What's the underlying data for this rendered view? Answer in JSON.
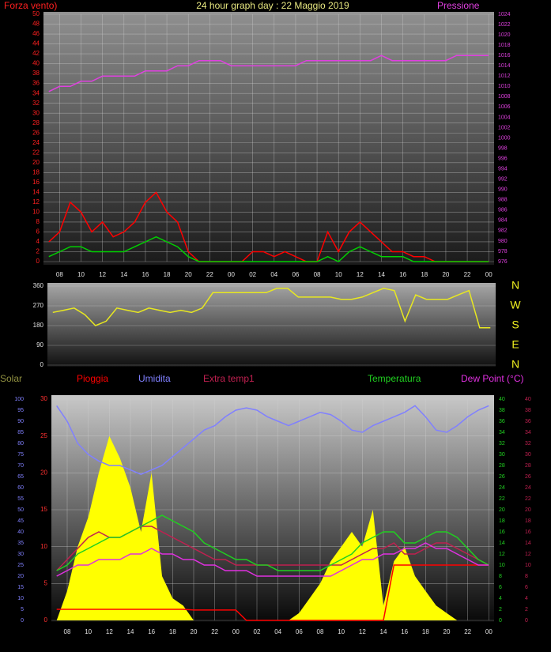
{
  "chart_data": [
    {
      "type": "line",
      "title": "24 hour graph day : 22 Maggio 2019",
      "ylabel": "Forza vento)",
      "y2label": "Pressione",
      "x": [
        7,
        8,
        9,
        10,
        11,
        12,
        13,
        14,
        15,
        16,
        17,
        18,
        19,
        20,
        21,
        22,
        23,
        24,
        25,
        26,
        27,
        28,
        29,
        30,
        31,
        32,
        33,
        34,
        35,
        36,
        37,
        38,
        39,
        40,
        41,
        42,
        43,
        44,
        45,
        46,
        47,
        48
      ],
      "xlim": [
        6.5,
        48.5
      ],
      "xticks": [
        {
          "value": 8,
          "label": "08"
        },
        10,
        12,
        14,
        16,
        18,
        20,
        22,
        {
          "value": 24,
          "label": "00"
        },
        {
          "value": 26,
          "label": "02"
        },
        {
          "value": 28,
          "label": "04"
        },
        {
          "value": 30,
          "label": "06"
        },
        {
          "value": 32,
          "label": "08"
        },
        {
          "value": 34,
          "label": "10"
        },
        {
          "value": 36,
          "label": "12"
        },
        {
          "value": 38,
          "label": "14"
        },
        {
          "value": 40,
          "label": "16"
        },
        {
          "value": 42,
          "label": "18"
        },
        {
          "value": 44,
          "label": "20"
        },
        {
          "value": 46,
          "label": "22"
        },
        {
          "value": 48,
          "label": "00"
        }
      ],
      "ylim": [
        0,
        50
      ],
      "yticks": [
        0,
        2,
        4,
        6,
        8,
        10,
        12,
        14,
        16,
        18,
        20,
        22,
        24,
        26,
        28,
        30,
        32,
        34,
        36,
        38,
        40,
        42,
        44,
        46,
        48,
        50
      ],
      "y2lim": [
        976,
        1024
      ],
      "y2ticks": [
        976,
        978,
        980,
        982,
        984,
        986,
        988,
        990,
        992,
        994,
        996,
        998,
        1000,
        1002,
        1004,
        1006,
        1008,
        1010,
        1012,
        1014,
        1016,
        1018,
        1020,
        1022,
        1024
      ],
      "axis_colors": {
        "y": "#ff2020",
        "y2": "#e040e0"
      },
      "grid": true,
      "series": [
        {
          "color": "#ff0000",
          "values": [
            4,
            6,
            12,
            10,
            6,
            8,
            5,
            6,
            8,
            12,
            14,
            10,
            8,
            2,
            0,
            0,
            0,
            0,
            0,
            2,
            2,
            1,
            2,
            1,
            0,
            0,
            6,
            2,
            6,
            8,
            6,
            4,
            2,
            2,
            1,
            1,
            0,
            0,
            0,
            0,
            0,
            0
          ]
        },
        {
          "color": "#00d000",
          "values": [
            1,
            2,
            3,
            3,
            2,
            2,
            2,
            2,
            3,
            4,
            5,
            4,
            3,
            1,
            0,
            0,
            0,
            0,
            0,
            0,
            0,
            0,
            0,
            0,
            0,
            0,
            1,
            0,
            2,
            3,
            2,
            1,
            1,
            1,
            0,
            0,
            0,
            0,
            0,
            0,
            0,
            0
          ]
        },
        {
          "color": "#e040e0",
          "axis": "y2",
          "values": [
            1009,
            1010,
            1010,
            1011,
            1011,
            1012,
            1012,
            1012,
            1012,
            1013,
            1013,
            1013,
            1014,
            1014,
            1015,
            1015,
            1015,
            1014,
            1014,
            1014,
            1014,
            1014,
            1014,
            1014,
            1015,
            1015,
            1015,
            1015,
            1015,
            1015,
            1015,
            1016,
            1015,
            1015,
            1015,
            1015,
            1015,
            1015,
            1016,
            1016,
            1016,
            1016
          ]
        }
      ]
    },
    {
      "type": "line",
      "x": [
        7,
        8,
        9,
        10,
        11,
        12,
        13,
        14,
        15,
        16,
        17,
        18,
        19,
        20,
        21,
        22,
        23,
        24,
        25,
        26,
        27,
        28,
        29,
        30,
        31,
        32,
        33,
        34,
        35,
        36,
        37,
        38,
        39,
        40,
        41,
        42,
        43,
        44,
        45,
        46,
        47,
        48
      ],
      "xlim": [
        6.5,
        48.5
      ],
      "ylim": [
        0,
        360
      ],
      "yticks": [
        0,
        90,
        180,
        270,
        360
      ],
      "y2lim": [
        0,
        360
      ],
      "y2ticks": [
        {
          "value": 360,
          "label": "N"
        },
        {
          "value": 270,
          "label": "W"
        },
        {
          "value": 180,
          "label": "S"
        },
        {
          "value": 90,
          "label": "E"
        },
        {
          "value": 0,
          "label": "N"
        }
      ],
      "axis_colors": {
        "y": "#e0e0e0",
        "y2": "#f0f020"
      },
      "grid": true,
      "series": [
        {
          "color": "#e8e820",
          "values": [
            240,
            250,
            260,
            230,
            180,
            200,
            260,
            250,
            240,
            260,
            250,
            240,
            250,
            240,
            260,
            330,
            330,
            330,
            330,
            330,
            330,
            350,
            350,
            310,
            310,
            310,
            310,
            300,
            300,
            310,
            330,
            350,
            340,
            200,
            320,
            300,
            300,
            300,
            320,
            340,
            170,
            170
          ]
        }
      ]
    },
    {
      "type": "line",
      "x": [
        7,
        8,
        9,
        10,
        11,
        12,
        13,
        14,
        15,
        16,
        17,
        18,
        19,
        20,
        21,
        22,
        23,
        24,
        25,
        26,
        27,
        28,
        29,
        30,
        31,
        32,
        33,
        34,
        35,
        36,
        37,
        38,
        39,
        40,
        41,
        42,
        43,
        44,
        45,
        46,
        47,
        48
      ],
      "xlim": [
        6.5,
        48.5
      ],
      "xticks": [
        {
          "value": 8,
          "label": "08"
        },
        10,
        12,
        14,
        16,
        18,
        20,
        22,
        {
          "value": 24,
          "label": "00"
        },
        {
          "value": 26,
          "label": "02"
        },
        {
          "value": 28,
          "label": "04"
        },
        {
          "value": 30,
          "label": "06"
        },
        {
          "value": 32,
          "label": "08"
        },
        {
          "value": 34,
          "label": "10"
        },
        {
          "value": 36,
          "label": "12"
        },
        {
          "value": 38,
          "label": "14"
        },
        {
          "value": 40,
          "label": "16"
        },
        {
          "value": 42,
          "label": "18"
        },
        {
          "value": 44,
          "label": "20"
        },
        {
          "value": 46,
          "label": "22"
        },
        {
          "value": 48,
          "label": "00"
        }
      ],
      "ylim": [
        0,
        30
      ],
      "yticks": [
        0,
        5,
        10,
        15,
        20,
        25,
        30
      ],
      "y3lim": [
        0,
        100
      ],
      "y3ticks": [
        0,
        5,
        10,
        15,
        20,
        25,
        30,
        35,
        40,
        45,
        50,
        55,
        60,
        65,
        70,
        75,
        80,
        85,
        90,
        95,
        100
      ],
      "y2lim": [
        0,
        40
      ],
      "y2ticks": [
        0,
        2,
        4,
        6,
        8,
        10,
        12,
        14,
        16,
        18,
        20,
        22,
        24,
        26,
        28,
        30,
        32,
        34,
        36,
        38,
        40
      ],
      "y4lim": [
        0,
        40
      ],
      "y4ticks": [
        0,
        2,
        4,
        6,
        8,
        10,
        12,
        14,
        16,
        18,
        20,
        22,
        24,
        26,
        28,
        30,
        32,
        34,
        36,
        38,
        40
      ],
      "axis_colors": {
        "y": "#ff3030",
        "y3": "#8080ff",
        "y2": "#20d020",
        "y4": "#c02050"
      },
      "grid": true,
      "series": [
        {
          "name": "Solar",
          "color": "#909040",
          "fill": "#ffff00",
          "style": "area",
          "values": [
            0,
            4,
            10,
            14,
            20,
            25,
            22,
            18,
            12,
            20,
            6,
            3,
            2,
            0,
            0,
            0,
            0,
            0,
            0,
            0,
            0,
            0,
            0,
            1,
            3,
            5,
            8,
            10,
            12,
            10,
            15,
            2,
            8,
            10,
            6,
            4,
            2,
            1,
            0,
            0,
            0,
            0
          ]
        },
        {
          "name": "Pioggia",
          "color": "#ff0000",
          "values": [
            1.5,
            1.5,
            1.5,
            1.5,
            1.5,
            1.5,
            1.5,
            1.5,
            1.5,
            1.5,
            1.5,
            1.5,
            1.5,
            1.4,
            1.4,
            1.4,
            1.4,
            1.4,
            0,
            0,
            0,
            0,
            0,
            0,
            0,
            0,
            0,
            0,
            0,
            0,
            0,
            0,
            7.5,
            7.5,
            7.5,
            7.5,
            7.5,
            7.5,
            7.5,
            7.5,
            7.5,
            7.5
          ]
        },
        {
          "name": "Umidita",
          "color": "#8080ff",
          "axis": "y3",
          "values": [
            97,
            90,
            80,
            75,
            72,
            70,
            70,
            68,
            66,
            68,
            70,
            74,
            78,
            82,
            86,
            88,
            92,
            95,
            96,
            95,
            92,
            90,
            88,
            90,
            92,
            94,
            93,
            90,
            86,
            85,
            88,
            90,
            92,
            94,
            97,
            92,
            86,
            85,
            88,
            92,
            95,
            97
          ]
        },
        {
          "name": "Extra temp1",
          "color": "#c02050",
          "axis": "y2",
          "values": [
            9,
            11,
            13,
            15,
            16,
            15,
            15,
            16,
            17,
            17,
            16,
            15,
            14,
            13,
            12,
            11,
            11,
            10,
            10,
            10,
            10,
            10,
            10,
            10,
            10,
            10,
            10,
            10,
            11,
            12,
            13,
            13,
            14,
            12,
            12,
            13,
            14,
            14,
            13,
            12,
            11,
            10
          ]
        },
        {
          "name": "Temperatura",
          "color": "#20d020",
          "axis": "y2",
          "values": [
            9,
            10,
            12,
            13,
            14,
            15,
            15,
            16,
            17,
            18,
            19,
            18,
            17,
            16,
            14,
            13,
            12,
            11,
            11,
            10,
            10,
            9,
            9,
            9,
            9,
            9,
            10,
            11,
            12,
            14,
            15,
            16,
            16,
            14,
            14,
            15,
            16,
            16,
            15,
            13,
            11,
            10
          ]
        },
        {
          "name": "Dew Point (°C)",
          "color": "#e030e0",
          "axis": "y2",
          "values": [
            8,
            9,
            10,
            10,
            11,
            11,
            11,
            12,
            12,
            13,
            12,
            12,
            11,
            11,
            10,
            10,
            9,
            9,
            9,
            8,
            8,
            8,
            8,
            8,
            8,
            8,
            8,
            9,
            10,
            11,
            11,
            12,
            12,
            13,
            13,
            14,
            13,
            13,
            12,
            11,
            10,
            10
          ]
        }
      ]
    }
  ]
}
